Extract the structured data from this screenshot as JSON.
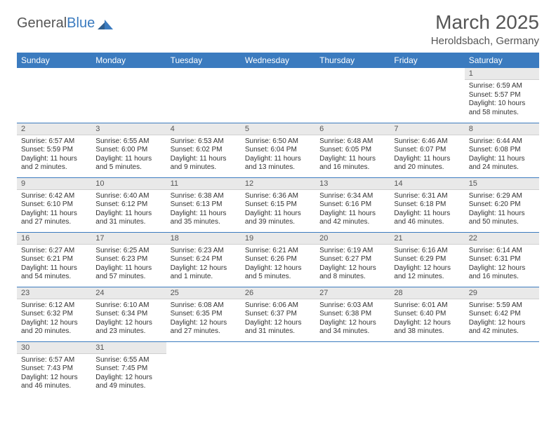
{
  "logo": {
    "text1": "General",
    "text2": "Blue"
  },
  "title": "March 2025",
  "location": "Heroldsbach, Germany",
  "colors": {
    "header_bg": "#3b7bbf",
    "header_text": "#ffffff",
    "daynum_bg": "#e9e9e9",
    "border": "#3b7bbf",
    "body_text": "#333333",
    "title_text": "#555555"
  },
  "weekdays": [
    "Sunday",
    "Monday",
    "Tuesday",
    "Wednesday",
    "Thursday",
    "Friday",
    "Saturday"
  ],
  "weeks": [
    [
      null,
      null,
      null,
      null,
      null,
      null,
      {
        "n": "1",
        "sunrise": "Sunrise: 6:59 AM",
        "sunset": "Sunset: 5:57 PM",
        "day": "Daylight: 10 hours and 58 minutes."
      }
    ],
    [
      {
        "n": "2",
        "sunrise": "Sunrise: 6:57 AM",
        "sunset": "Sunset: 5:59 PM",
        "day": "Daylight: 11 hours and 2 minutes."
      },
      {
        "n": "3",
        "sunrise": "Sunrise: 6:55 AM",
        "sunset": "Sunset: 6:00 PM",
        "day": "Daylight: 11 hours and 5 minutes."
      },
      {
        "n": "4",
        "sunrise": "Sunrise: 6:53 AM",
        "sunset": "Sunset: 6:02 PM",
        "day": "Daylight: 11 hours and 9 minutes."
      },
      {
        "n": "5",
        "sunrise": "Sunrise: 6:50 AM",
        "sunset": "Sunset: 6:04 PM",
        "day": "Daylight: 11 hours and 13 minutes."
      },
      {
        "n": "6",
        "sunrise": "Sunrise: 6:48 AM",
        "sunset": "Sunset: 6:05 PM",
        "day": "Daylight: 11 hours and 16 minutes."
      },
      {
        "n": "7",
        "sunrise": "Sunrise: 6:46 AM",
        "sunset": "Sunset: 6:07 PM",
        "day": "Daylight: 11 hours and 20 minutes."
      },
      {
        "n": "8",
        "sunrise": "Sunrise: 6:44 AM",
        "sunset": "Sunset: 6:08 PM",
        "day": "Daylight: 11 hours and 24 minutes."
      }
    ],
    [
      {
        "n": "9",
        "sunrise": "Sunrise: 6:42 AM",
        "sunset": "Sunset: 6:10 PM",
        "day": "Daylight: 11 hours and 27 minutes."
      },
      {
        "n": "10",
        "sunrise": "Sunrise: 6:40 AM",
        "sunset": "Sunset: 6:12 PM",
        "day": "Daylight: 11 hours and 31 minutes."
      },
      {
        "n": "11",
        "sunrise": "Sunrise: 6:38 AM",
        "sunset": "Sunset: 6:13 PM",
        "day": "Daylight: 11 hours and 35 minutes."
      },
      {
        "n": "12",
        "sunrise": "Sunrise: 6:36 AM",
        "sunset": "Sunset: 6:15 PM",
        "day": "Daylight: 11 hours and 39 minutes."
      },
      {
        "n": "13",
        "sunrise": "Sunrise: 6:34 AM",
        "sunset": "Sunset: 6:16 PM",
        "day": "Daylight: 11 hours and 42 minutes."
      },
      {
        "n": "14",
        "sunrise": "Sunrise: 6:31 AM",
        "sunset": "Sunset: 6:18 PM",
        "day": "Daylight: 11 hours and 46 minutes."
      },
      {
        "n": "15",
        "sunrise": "Sunrise: 6:29 AM",
        "sunset": "Sunset: 6:20 PM",
        "day": "Daylight: 11 hours and 50 minutes."
      }
    ],
    [
      {
        "n": "16",
        "sunrise": "Sunrise: 6:27 AM",
        "sunset": "Sunset: 6:21 PM",
        "day": "Daylight: 11 hours and 54 minutes."
      },
      {
        "n": "17",
        "sunrise": "Sunrise: 6:25 AM",
        "sunset": "Sunset: 6:23 PM",
        "day": "Daylight: 11 hours and 57 minutes."
      },
      {
        "n": "18",
        "sunrise": "Sunrise: 6:23 AM",
        "sunset": "Sunset: 6:24 PM",
        "day": "Daylight: 12 hours and 1 minute."
      },
      {
        "n": "19",
        "sunrise": "Sunrise: 6:21 AM",
        "sunset": "Sunset: 6:26 PM",
        "day": "Daylight: 12 hours and 5 minutes."
      },
      {
        "n": "20",
        "sunrise": "Sunrise: 6:19 AM",
        "sunset": "Sunset: 6:27 PM",
        "day": "Daylight: 12 hours and 8 minutes."
      },
      {
        "n": "21",
        "sunrise": "Sunrise: 6:16 AM",
        "sunset": "Sunset: 6:29 PM",
        "day": "Daylight: 12 hours and 12 minutes."
      },
      {
        "n": "22",
        "sunrise": "Sunrise: 6:14 AM",
        "sunset": "Sunset: 6:31 PM",
        "day": "Daylight: 12 hours and 16 minutes."
      }
    ],
    [
      {
        "n": "23",
        "sunrise": "Sunrise: 6:12 AM",
        "sunset": "Sunset: 6:32 PM",
        "day": "Daylight: 12 hours and 20 minutes."
      },
      {
        "n": "24",
        "sunrise": "Sunrise: 6:10 AM",
        "sunset": "Sunset: 6:34 PM",
        "day": "Daylight: 12 hours and 23 minutes."
      },
      {
        "n": "25",
        "sunrise": "Sunrise: 6:08 AM",
        "sunset": "Sunset: 6:35 PM",
        "day": "Daylight: 12 hours and 27 minutes."
      },
      {
        "n": "26",
        "sunrise": "Sunrise: 6:06 AM",
        "sunset": "Sunset: 6:37 PM",
        "day": "Daylight: 12 hours and 31 minutes."
      },
      {
        "n": "27",
        "sunrise": "Sunrise: 6:03 AM",
        "sunset": "Sunset: 6:38 PM",
        "day": "Daylight: 12 hours and 34 minutes."
      },
      {
        "n": "28",
        "sunrise": "Sunrise: 6:01 AM",
        "sunset": "Sunset: 6:40 PM",
        "day": "Daylight: 12 hours and 38 minutes."
      },
      {
        "n": "29",
        "sunrise": "Sunrise: 5:59 AM",
        "sunset": "Sunset: 6:42 PM",
        "day": "Daylight: 12 hours and 42 minutes."
      }
    ],
    [
      {
        "n": "30",
        "sunrise": "Sunrise: 6:57 AM",
        "sunset": "Sunset: 7:43 PM",
        "day": "Daylight: 12 hours and 46 minutes."
      },
      {
        "n": "31",
        "sunrise": "Sunrise: 6:55 AM",
        "sunset": "Sunset: 7:45 PM",
        "day": "Daylight: 12 hours and 49 minutes."
      },
      null,
      null,
      null,
      null,
      null
    ]
  ]
}
